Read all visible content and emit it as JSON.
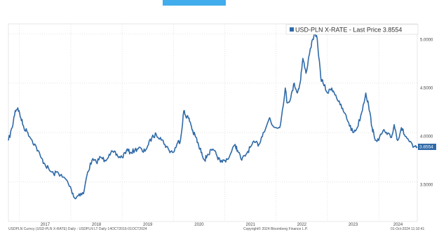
{
  "chart_data": {
    "type": "line",
    "series": [
      {
        "name": "USD-PLN X-RATE - Last Price 3.8554",
        "color": "#2f6aa8",
        "points": [
          [
            "2016-10-14",
            3.92
          ],
          [
            "2016-11-10",
            4.05
          ],
          [
            "2016-12-01",
            4.22
          ],
          [
            "2016-12-20",
            4.25
          ],
          [
            "2017-01-10",
            4.15
          ],
          [
            "2017-02-01",
            4.05
          ],
          [
            "2017-03-01",
            4.0
          ],
          [
            "2017-04-01",
            3.92
          ],
          [
            "2017-05-01",
            3.85
          ],
          [
            "2017-06-01",
            3.75
          ],
          [
            "2017-07-01",
            3.68
          ],
          [
            "2017-08-01",
            3.62
          ],
          [
            "2017-09-01",
            3.58
          ],
          [
            "2017-10-01",
            3.6
          ],
          [
            "2017-11-01",
            3.55
          ],
          [
            "2017-12-01",
            3.52
          ],
          [
            "2018-01-05",
            3.42
          ],
          [
            "2018-02-01",
            3.33
          ],
          [
            "2018-03-01",
            3.38
          ],
          [
            "2018-04-01",
            3.38
          ],
          [
            "2018-05-01",
            3.6
          ],
          [
            "2018-06-01",
            3.72
          ],
          [
            "2018-07-01",
            3.7
          ],
          [
            "2018-08-01",
            3.75
          ],
          [
            "2018-09-01",
            3.72
          ],
          [
            "2018-10-01",
            3.78
          ],
          [
            "2018-11-01",
            3.8
          ],
          [
            "2018-12-01",
            3.76
          ],
          [
            "2019-01-01",
            3.75
          ],
          [
            "2019-02-01",
            3.82
          ],
          [
            "2019-03-01",
            3.8
          ],
          [
            "2019-04-01",
            3.82
          ],
          [
            "2019-05-01",
            3.85
          ],
          [
            "2019-06-01",
            3.8
          ],
          [
            "2019-07-01",
            3.86
          ],
          [
            "2019-08-01",
            3.95
          ],
          [
            "2019-09-01",
            3.98
          ],
          [
            "2019-10-01",
            3.95
          ],
          [
            "2019-11-01",
            3.88
          ],
          [
            "2019-12-01",
            3.82
          ],
          [
            "2020-01-01",
            3.8
          ],
          [
            "2020-02-01",
            3.9
          ],
          [
            "2020-02-20",
            3.92
          ],
          [
            "2020-03-15",
            4.22
          ],
          [
            "2020-03-25",
            4.18
          ],
          [
            "2020-04-15",
            4.15
          ],
          [
            "2020-05-01",
            4.1
          ],
          [
            "2020-05-20",
            4.0
          ],
          [
            "2020-06-10",
            3.95
          ],
          [
            "2020-07-01",
            3.85
          ],
          [
            "2020-07-20",
            3.8
          ],
          [
            "2020-08-10",
            3.72
          ],
          [
            "2020-09-01",
            3.78
          ],
          [
            "2020-10-01",
            3.82
          ],
          [
            "2020-11-01",
            3.78
          ],
          [
            "2020-12-01",
            3.7
          ],
          [
            "2021-01-01",
            3.72
          ],
          [
            "2021-02-01",
            3.75
          ],
          [
            "2021-03-15",
            3.88
          ],
          [
            "2021-04-01",
            3.82
          ],
          [
            "2021-05-01",
            3.72
          ],
          [
            "2021-06-01",
            3.78
          ],
          [
            "2021-07-01",
            3.85
          ],
          [
            "2021-08-01",
            3.9
          ],
          [
            "2021-09-01",
            3.88
          ],
          [
            "2021-10-01",
            4.0
          ],
          [
            "2021-11-15",
            4.15
          ],
          [
            "2021-12-01",
            4.08
          ],
          [
            "2022-01-01",
            4.05
          ],
          [
            "2022-02-01",
            4.08
          ],
          [
            "2022-03-07",
            4.45
          ],
          [
            "2022-03-20",
            4.3
          ],
          [
            "2022-04-15",
            4.35
          ],
          [
            "2022-05-10",
            4.5
          ],
          [
            "2022-06-01",
            4.4
          ],
          [
            "2022-06-20",
            4.5
          ],
          [
            "2022-07-10",
            4.75
          ],
          [
            "2022-08-01",
            4.6
          ],
          [
            "2022-09-01",
            4.85
          ],
          [
            "2022-09-28",
            4.99
          ],
          [
            "2022-10-20",
            4.95
          ],
          [
            "2022-11-15",
            4.55
          ],
          [
            "2022-12-01",
            4.5
          ],
          [
            "2023-01-01",
            4.4
          ],
          [
            "2023-02-01",
            4.45
          ],
          [
            "2023-03-01",
            4.38
          ],
          [
            "2023-04-01",
            4.28
          ],
          [
            "2023-05-01",
            4.2
          ],
          [
            "2023-06-01",
            4.1
          ],
          [
            "2023-07-01",
            4.0
          ],
          [
            "2023-08-01",
            4.05
          ],
          [
            "2023-09-01",
            4.2
          ],
          [
            "2023-10-01",
            4.4
          ],
          [
            "2023-10-20",
            4.28
          ],
          [
            "2023-11-15",
            4.05
          ],
          [
            "2023-12-01",
            3.95
          ],
          [
            "2024-01-01",
            3.92
          ],
          [
            "2024-02-01",
            4.02
          ],
          [
            "2024-03-01",
            3.98
          ],
          [
            "2024-04-01",
            3.95
          ],
          [
            "2024-04-20",
            4.08
          ],
          [
            "2024-05-15",
            3.92
          ],
          [
            "2024-06-10",
            4.05
          ],
          [
            "2024-07-01",
            3.98
          ],
          [
            "2024-08-01",
            3.92
          ],
          [
            "2024-09-01",
            3.85
          ],
          [
            "2024-10-01",
            3.8554
          ]
        ]
      }
    ],
    "x_tick_labels": [
      "2017",
      "2018",
      "2019",
      "2020",
      "2021",
      "2022",
      "2023",
      "2024"
    ],
    "xlim": [
      "2016-10-14",
      "2024-10-01"
    ],
    "y_tick_labels": [
      "3.5000",
      "4.0000",
      "4.5000",
      "5.0000"
    ],
    "ylim": [
      3.1,
      5.1
    ],
    "last_price_label": "3.8554",
    "legend": {
      "text": "USD-PLN X-RATE - Last Price 3.8554",
      "position": "top-right"
    },
    "grid": true
  },
  "footer": {
    "left": "USDPLN Curncy (USD-PLN X-RATE) Daily - USDPLN LT Daily 14OCT2016-01OCT2024",
    "center": "Copyright© 2024 Bloomberg Finance L.P.",
    "right": "01-Oct-2024 11:10:41"
  },
  "colors": {
    "line": "#2f6aa8",
    "grid": "#c8c8c8",
    "last_price_bg": "#2f6aa8",
    "accent_strip": "#2ea4ea"
  }
}
